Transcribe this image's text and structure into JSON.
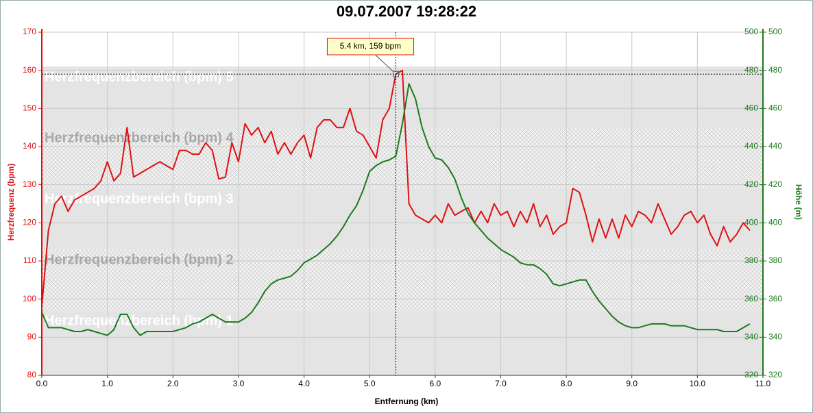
{
  "chart_data": {
    "type": "line",
    "title": "09.07.2007 19:28:22",
    "xlabel": "Entfernung (km)",
    "ylabel": "Herzfrequenz (bpm)",
    "y2label": "Höhe (m)",
    "x": [
      0,
      0.1,
      0.2,
      0.3,
      0.4,
      0.5,
      0.6,
      0.7,
      0.8,
      0.9,
      1,
      1.1,
      1.2,
      1.3,
      1.4,
      1.5,
      1.6,
      1.7,
      1.8,
      1.9,
      2,
      2.1,
      2.2,
      2.3,
      2.4,
      2.5,
      2.6,
      2.7,
      2.8,
      2.9,
      3,
      3.1,
      3.2,
      3.3,
      3.4,
      3.5,
      3.6,
      3.7,
      3.8,
      3.9,
      4,
      4.1,
      4.2,
      4.3,
      4.4,
      4.5,
      4.6,
      4.7,
      4.8,
      4.9,
      5,
      5.1,
      5.2,
      5.3,
      5.4,
      5.5,
      5.6,
      5.7,
      5.8,
      5.9,
      6,
      6.1,
      6.2,
      6.3,
      6.4,
      6.5,
      6.6,
      6.7,
      6.8,
      6.9,
      7,
      7.1,
      7.2,
      7.3,
      7.4,
      7.5,
      7.6,
      7.7,
      7.8,
      7.9,
      8,
      8.1,
      8.2,
      8.3,
      8.4,
      8.5,
      8.6,
      8.7,
      8.8,
      8.9,
      9,
      9.1,
      9.2,
      9.3,
      9.4,
      9.5,
      9.6,
      9.7,
      9.8,
      9.9,
      10,
      10.1,
      10.2,
      10.3,
      10.4,
      10.5,
      10.6,
      10.7,
      10.8
    ],
    "series": [
      {
        "name": "Herzfrequenz (bpm)",
        "color": "#e01010",
        "axis": "y",
        "values": [
          98,
          118,
          125,
          127,
          123,
          126,
          127,
          128,
          129,
          131,
          136,
          131,
          133,
          145,
          132,
          133,
          134,
          135,
          136,
          135,
          134,
          139,
          139,
          138,
          138,
          141,
          139,
          131.5,
          132,
          141,
          136,
          146,
          143,
          145,
          141,
          144,
          138,
          141,
          138,
          141,
          143,
          137,
          145,
          147,
          147,
          145,
          145,
          150,
          144,
          143,
          140,
          137,
          147,
          150,
          159,
          160,
          125,
          122,
          121,
          120,
          122,
          120,
          125,
          122,
          123,
          124,
          120,
          123,
          120,
          125,
          122,
          123,
          119,
          123,
          120,
          125,
          119,
          122,
          117,
          119,
          120,
          129,
          128,
          122,
          115,
          121,
          116,
          121,
          116,
          122,
          119,
          123,
          122,
          120,
          125,
          121,
          117,
          119,
          122,
          123,
          120,
          122,
          117,
          114,
          119,
          115,
          117,
          120,
          118
        ]
      },
      {
        "name": "Höhe (m)",
        "color": "#1a7a1a",
        "axis": "y2",
        "values": [
          353,
          345,
          345,
          345,
          344,
          343,
          343,
          344,
          343,
          342,
          341,
          344,
          352,
          352,
          345,
          341,
          343,
          343,
          343,
          343,
          343,
          344,
          345,
          347,
          348,
          350,
          352,
          350,
          348,
          348,
          348,
          350,
          353,
          358,
          364,
          368,
          370,
          371,
          372,
          375,
          379,
          381,
          383,
          386,
          389,
          393,
          398,
          404,
          409,
          417,
          427,
          430,
          432,
          433,
          435,
          452,
          473,
          465,
          450,
          440,
          434,
          433,
          429,
          423,
          413,
          405,
          400,
          396,
          392,
          389,
          386,
          384,
          382,
          379,
          378,
          378,
          376,
          373,
          368,
          367,
          368,
          369,
          370,
          370,
          364,
          359,
          355,
          351,
          348,
          346,
          345,
          345,
          346,
          347,
          347,
          347,
          346,
          346,
          346,
          345,
          344,
          344,
          344,
          344,
          343,
          343,
          343,
          345,
          347
        ]
      }
    ],
    "zones": [
      {
        "label": "Herzfrequenzbereich (bpm) 1",
        "from": 80,
        "to": 97,
        "fill": "solid"
      },
      {
        "label": "Herzfrequenzbereich (bpm) 2",
        "from": 97,
        "to": 113,
        "fill": "hatch"
      },
      {
        "label": "Herzfrequenzbereich (bpm) 3",
        "from": 113,
        "to": 129,
        "fill": "solid"
      },
      {
        "label": "Herzfrequenzbereich (bpm) 4",
        "from": 129,
        "to": 145,
        "fill": "hatch"
      },
      {
        "label": "Herzfrequenzbereich (bpm) 5",
        "from": 145,
        "to": 161,
        "fill": "solid"
      }
    ],
    "cursor": {
      "x": 5.4,
      "y": 159,
      "label": "5.4 km, 159 bpm"
    },
    "xlim": [
      0,
      11
    ],
    "xticks": [
      {
        "value": 0,
        "label": "0.0"
      },
      {
        "value": 1,
        "label": "1.0"
      },
      {
        "value": 2,
        "label": "2.0"
      },
      {
        "value": 3,
        "label": "3.0"
      },
      {
        "value": 4,
        "label": "4.0"
      },
      {
        "value": 5,
        "label": "5.0"
      },
      {
        "value": 6,
        "label": "6.0"
      },
      {
        "value": 7,
        "label": "7.0"
      },
      {
        "value": 8,
        "label": "8.0"
      },
      {
        "value": 9,
        "label": "9.0"
      },
      {
        "value": 10,
        "label": "10.0"
      },
      {
        "value": 11,
        "label": "11.0"
      }
    ],
    "ylim": [
      80,
      170
    ],
    "yticks": [
      80,
      90,
      100,
      110,
      120,
      130,
      140,
      150,
      160,
      170
    ],
    "y2lim": [
      320,
      500
    ],
    "y2ticks": [
      320,
      340,
      360,
      380,
      400,
      420,
      440,
      460,
      480,
      500
    ],
    "grid": true
  }
}
